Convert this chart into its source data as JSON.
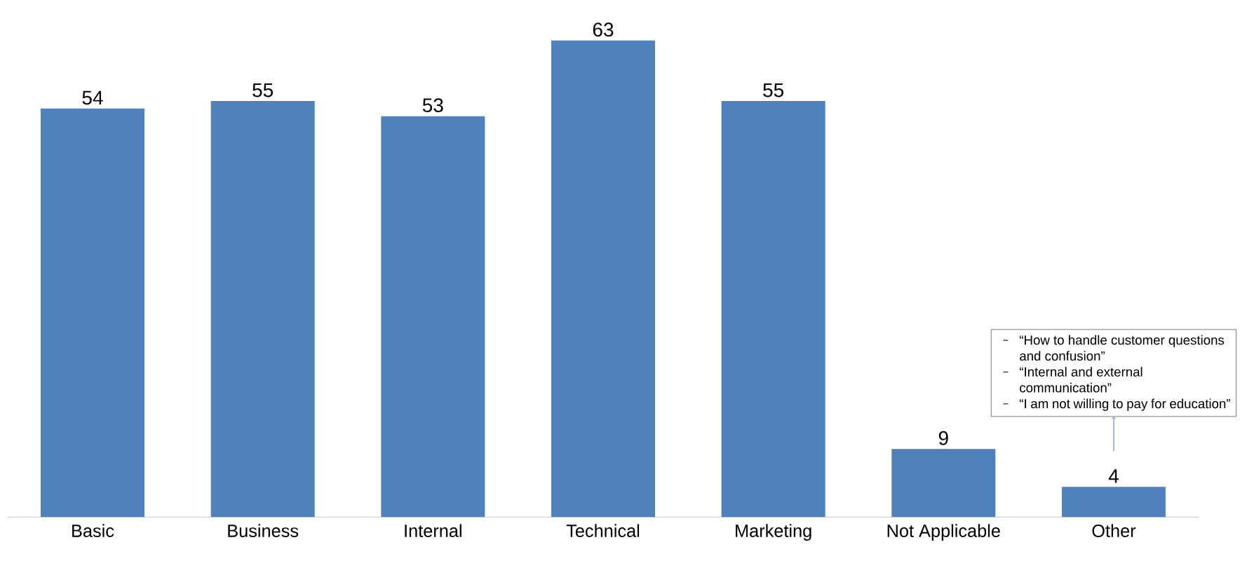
{
  "chart_data": {
    "type": "bar",
    "categories": [
      "Basic",
      "Business",
      "Internal",
      "Technical",
      "Marketing",
      "Not Applicable",
      "Other"
    ],
    "values": [
      54,
      55,
      53,
      63,
      55,
      9,
      4
    ],
    "color": "#4f81bd",
    "data_labels": true,
    "tick_labels": "x",
    "annotations": [
      "“How to handle customer questions and confusion”",
      "“Internal and external communication”",
      "“I am not willing to pay for education”"
    ]
  }
}
